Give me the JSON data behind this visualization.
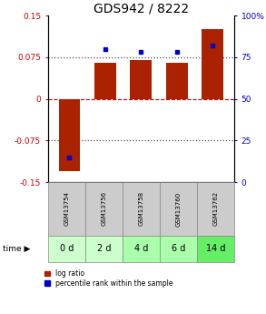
{
  "title": "GDS942 / 8222",
  "samples": [
    "GSM13754",
    "GSM13756",
    "GSM13758",
    "GSM13760",
    "GSM13762"
  ],
  "time_labels": [
    "0 d",
    "2 d",
    "4 d",
    "6 d",
    "14 d"
  ],
  "log_ratio": [
    -0.13,
    0.065,
    0.07,
    0.065,
    0.125
  ],
  "percentile_rank": [
    15,
    80,
    78,
    78,
    82
  ],
  "left_ylim": [
    -0.15,
    0.15
  ],
  "right_ylim": [
    0,
    100
  ],
  "left_yticks": [
    -0.15,
    -0.075,
    0,
    0.075,
    0.15
  ],
  "right_yticks": [
    0,
    25,
    50,
    75,
    100
  ],
  "left_yticklabels": [
    "-0.15",
    "-0.075",
    "0",
    "0.075",
    "0.15"
  ],
  "right_yticklabels": [
    "0",
    "25",
    "50",
    "75",
    "100%"
  ],
  "bar_color": "#aa2200",
  "dot_color": "#0000cc",
  "sample_bg_color": "#cccccc",
  "time_bg_colors": [
    "#ccffcc",
    "#ccffcc",
    "#aaffaa",
    "#aaffaa",
    "#66ee66"
  ],
  "legend_bar_color": "#aa2200",
  "legend_dot_color": "#0000cc",
  "legend_label_bar": "log ratio",
  "legend_label_dot": "percentile rank within the sample",
  "time_label": "time",
  "title_fontsize": 10,
  "axis_label_color_left": "#cc0000",
  "axis_label_color_right": "#0000cc"
}
